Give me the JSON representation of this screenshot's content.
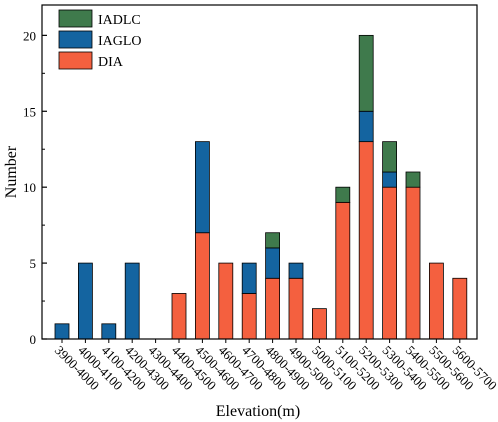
{
  "chart_data": {
    "type": "bar",
    "stacked": true,
    "title": "",
    "xlabel": "Elevation(m)",
    "ylabel": "Number",
    "ylim": [
      0,
      22
    ],
    "yticks": [
      0,
      5,
      10,
      15,
      20
    ],
    "grid": false,
    "legend_position": "top-left",
    "categories": [
      "3900-4000",
      "4000-4100",
      "4100-4200",
      "4200-4300",
      "4300-4400",
      "4400-4500",
      "4500-4600",
      "4600-4700",
      "4700-4800",
      "4800-4900",
      "4900-5000",
      "5000-5100",
      "5100-5200",
      "5200-5300",
      "5300-5400",
      "5400-5500",
      "5500-5600",
      "5600-5700"
    ],
    "series": [
      {
        "name": "DIA",
        "color": "#f4603f",
        "values": [
          0,
          0,
          0,
          0,
          0,
          3,
          7,
          5,
          3,
          4,
          4,
          2,
          9,
          13,
          10,
          10,
          5,
          4
        ]
      },
      {
        "name": "IAGLO",
        "color": "#1464a0",
        "values": [
          1,
          5,
          1,
          5,
          0,
          0,
          6,
          0,
          2,
          2,
          1,
          0,
          0,
          2,
          1,
          0,
          0,
          0
        ]
      },
      {
        "name": "IADLC",
        "color": "#3f7a4c",
        "values": [
          0,
          0,
          0,
          0,
          0,
          0,
          0,
          0,
          0,
          1,
          0,
          0,
          1,
          5,
          2,
          1,
          0,
          0
        ]
      }
    ],
    "legend_order": [
      "IADLC",
      "IAGLO",
      "DIA"
    ]
  }
}
